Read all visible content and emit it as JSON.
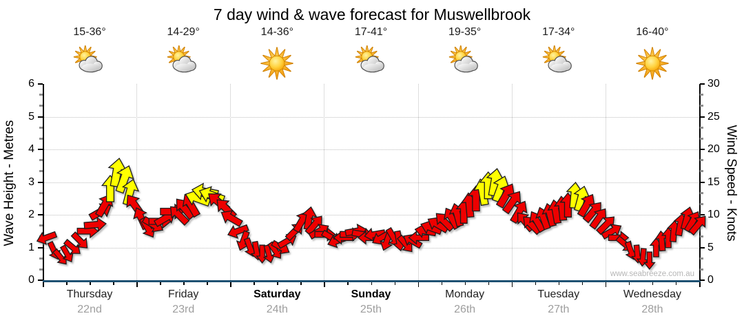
{
  "title": "7 day wind & wave forecast for Muswellbrook",
  "watermark": "www.seabreeze.com.au",
  "days": [
    {
      "name": "Thursday",
      "date": "22nd",
      "temp": "15-36°",
      "icon": "partly-cloudy",
      "weekend": false
    },
    {
      "name": "Friday",
      "date": "23rd",
      "temp": "14-29°",
      "icon": "partly-cloudy",
      "weekend": false
    },
    {
      "name": "Saturday",
      "date": "24th",
      "temp": "14-36°",
      "icon": "sunny",
      "weekend": true
    },
    {
      "name": "Sunday",
      "date": "25th",
      "temp": "17-41°",
      "icon": "partly-cloudy",
      "weekend": true
    },
    {
      "name": "Monday",
      "date": "26th",
      "temp": "19-35°",
      "icon": "partly-cloudy",
      "weekend": false
    },
    {
      "name": "Tuesday",
      "date": "27th",
      "temp": "17-34°",
      "icon": "partly-cloudy",
      "weekend": false
    },
    {
      "name": "Wednesday",
      "date": "28th",
      "temp": "16-40°",
      "icon": "sunny",
      "weekend": false
    }
  ],
  "left_axis": {
    "label": "Wave Height - Metres",
    "ticks": [
      0,
      1,
      2,
      3,
      4,
      5,
      6
    ]
  },
  "right_axis": {
    "label": "Wind Speed - Knots",
    "ticks": [
      0,
      5,
      10,
      15,
      20,
      25,
      30
    ]
  },
  "colors": {
    "arrow_red": "#ee0000",
    "arrow_yellow": "#ffff00",
    "arrow_outline": "#1c1c1c",
    "bottom_axis": "#1e5172",
    "grid": "#bdbdbd",
    "date_text": "#9e9e9e",
    "watermark_text": "#b6b6b6"
  },
  "chart_data": {
    "type": "scatter",
    "subtype": "wind-direction-arrow-series",
    "title": "7 day wind & wave forecast for Muswellbrook",
    "x_axis": {
      "categories": [
        "Thursday 22nd",
        "Friday 23rd",
        "Saturday 24th",
        "Sunday 25th",
        "Monday 26th",
        "Tuesday 27th",
        "Wednesday 28th"
      ],
      "range_days": [
        0,
        7
      ]
    },
    "y_left_axis": {
      "label": "Wave Height - Metres",
      "range": [
        0,
        6
      ],
      "ticks": [
        0,
        1,
        2,
        3,
        4,
        5,
        6
      ]
    },
    "y_right_axis": {
      "label": "Wind Speed - Knots",
      "range": [
        0,
        30
      ],
      "ticks": [
        0,
        5,
        10,
        15,
        20,
        25,
        30
      ]
    },
    "grid": "dotted horizontal each 5 knots, dotted vertical each day",
    "legend_note": "arrows plotted against knots axis; red = moderate wind, yellow = stronger wind (~13+ kn); arrow orientation shows wind direction",
    "arrow_format": [
      "t_days_from_start",
      "knots",
      "direction_deg_0_is_up_clockwise",
      "color r=red y=yellow"
    ],
    "arrows": [
      [
        0.04,
        6.5,
        250,
        "r"
      ],
      [
        0.12,
        4.5,
        155,
        "r"
      ],
      [
        0.19,
        3.5,
        140,
        "r"
      ],
      [
        0.26,
        4,
        150,
        "r"
      ],
      [
        0.32,
        5,
        130,
        "r"
      ],
      [
        0.4,
        6,
        135,
        "r"
      ],
      [
        0.48,
        7.5,
        90,
        "r"
      ],
      [
        0.56,
        8.5,
        85,
        "r"
      ],
      [
        0.62,
        10.5,
        60,
        "r"
      ],
      [
        0.66,
        11.5,
        30,
        "r"
      ],
      [
        0.72,
        14,
        0,
        "y"
      ],
      [
        0.79,
        16.5,
        10,
        "y"
      ],
      [
        0.87,
        15.5,
        20,
        "y"
      ],
      [
        0.93,
        13.5,
        15,
        "y"
      ],
      [
        0.98,
        11.5,
        325,
        "r"
      ],
      [
        1.05,
        9.5,
        335,
        "r"
      ],
      [
        1.12,
        8,
        150,
        "r"
      ],
      [
        1.18,
        8.5,
        120,
        "r"
      ],
      [
        1.25,
        9,
        90,
        "r"
      ],
      [
        1.31,
        9.5,
        60,
        "r"
      ],
      [
        1.38,
        10.5,
        90,
        "r"
      ],
      [
        1.45,
        10,
        315,
        "r"
      ],
      [
        1.51,
        11,
        320,
        "r"
      ],
      [
        1.58,
        11.5,
        330,
        "r"
      ],
      [
        1.65,
        12.5,
        290,
        "y"
      ],
      [
        1.73,
        13.5,
        280,
        "y"
      ],
      [
        1.8,
        13,
        290,
        "y"
      ],
      [
        1.87,
        12,
        310,
        "r"
      ],
      [
        1.95,
        11,
        315,
        "r"
      ],
      [
        2.01,
        9.5,
        300,
        "r"
      ],
      [
        2.08,
        7.5,
        250,
        "r"
      ],
      [
        2.14,
        6,
        200,
        "r"
      ],
      [
        2.21,
        5,
        160,
        "r"
      ],
      [
        2.28,
        4.5,
        170,
        "r"
      ],
      [
        2.34,
        4,
        180,
        "r"
      ],
      [
        2.41,
        4,
        165,
        "r"
      ],
      [
        2.48,
        4.5,
        145,
        "r"
      ],
      [
        2.54,
        5,
        120,
        "r"
      ],
      [
        2.61,
        6,
        60,
        "r"
      ],
      [
        2.69,
        7.5,
        45,
        "r"
      ],
      [
        2.76,
        9,
        30,
        "r"
      ],
      [
        2.84,
        9.5,
        10,
        "r"
      ],
      [
        2.9,
        8.5,
        40,
        "r"
      ],
      [
        2.95,
        7.5,
        60,
        "r"
      ],
      [
        3.01,
        7,
        90,
        "r"
      ],
      [
        3.08,
        6.5,
        120,
        "r"
      ],
      [
        3.14,
        6,
        250,
        "r"
      ],
      [
        3.21,
        6.5,
        270,
        "r"
      ],
      [
        3.28,
        7,
        90,
        "r"
      ],
      [
        3.34,
        7.5,
        80,
        "r"
      ],
      [
        3.41,
        7,
        100,
        "r"
      ],
      [
        3.47,
        6.5,
        270,
        "r"
      ],
      [
        3.54,
        7,
        260,
        "r"
      ],
      [
        3.61,
        6.5,
        240,
        "r"
      ],
      [
        3.67,
        6,
        200,
        "r"
      ],
      [
        3.74,
        6.5,
        150,
        "r"
      ],
      [
        3.8,
        6,
        170,
        "r"
      ],
      [
        3.87,
        5.5,
        140,
        "r"
      ],
      [
        3.94,
        6,
        300,
        "r"
      ],
      [
        4.01,
        6.5,
        270,
        "r"
      ],
      [
        4.08,
        7.5,
        280,
        "r"
      ],
      [
        4.14,
        8,
        290,
        "r"
      ],
      [
        4.21,
        8.5,
        300,
        "r"
      ],
      [
        4.28,
        9,
        315,
        "r"
      ],
      [
        4.36,
        9.5,
        330,
        "r"
      ],
      [
        4.42,
        10,
        345,
        "r"
      ],
      [
        4.49,
        10.5,
        0,
        "r"
      ],
      [
        4.55,
        11.5,
        355,
        "r"
      ],
      [
        4.62,
        12.5,
        0,
        "r"
      ],
      [
        4.69,
        13.5,
        350,
        "y"
      ],
      [
        4.75,
        14.5,
        0,
        "y"
      ],
      [
        4.82,
        15,
        10,
        "y"
      ],
      [
        4.88,
        14,
        20,
        "y"
      ],
      [
        4.94,
        13,
        30,
        "r"
      ],
      [
        5.01,
        12,
        35,
        "r"
      ],
      [
        5.08,
        10.5,
        30,
        "r"
      ],
      [
        5.14,
        9,
        320,
        "r"
      ],
      [
        5.21,
        8.5,
        315,
        "r"
      ],
      [
        5.27,
        9,
        330,
        "r"
      ],
      [
        5.34,
        9.5,
        340,
        "r"
      ],
      [
        5.41,
        10,
        345,
        "r"
      ],
      [
        5.47,
        10.5,
        350,
        "r"
      ],
      [
        5.54,
        11,
        355,
        "r"
      ],
      [
        5.6,
        11.5,
        0,
        "r"
      ],
      [
        5.67,
        13,
        5,
        "y"
      ],
      [
        5.74,
        12.5,
        15,
        "y"
      ],
      [
        5.8,
        11.5,
        30,
        "r"
      ],
      [
        5.87,
        10.5,
        40,
        "r"
      ],
      [
        5.93,
        9.5,
        35,
        "r"
      ],
      [
        6.01,
        8.5,
        45,
        "r"
      ],
      [
        6.07,
        7.5,
        60,
        "r"
      ],
      [
        6.14,
        6.5,
        90,
        "r"
      ],
      [
        6.21,
        5.5,
        130,
        "r"
      ],
      [
        6.27,
        4.5,
        160,
        "r"
      ],
      [
        6.34,
        4,
        175,
        "r"
      ],
      [
        6.4,
        3.5,
        185,
        "r"
      ],
      [
        6.47,
        3,
        180,
        "r"
      ],
      [
        6.54,
        5,
        0,
        "r"
      ],
      [
        6.6,
        6,
        355,
        "r"
      ],
      [
        6.67,
        6.5,
        0,
        "r"
      ],
      [
        6.73,
        7.5,
        5,
        "r"
      ],
      [
        6.8,
        8.5,
        10,
        "r"
      ],
      [
        6.87,
        9.5,
        15,
        "r"
      ],
      [
        6.93,
        9,
        30,
        "r"
      ],
      [
        6.99,
        8.5,
        40,
        "r"
      ]
    ]
  }
}
